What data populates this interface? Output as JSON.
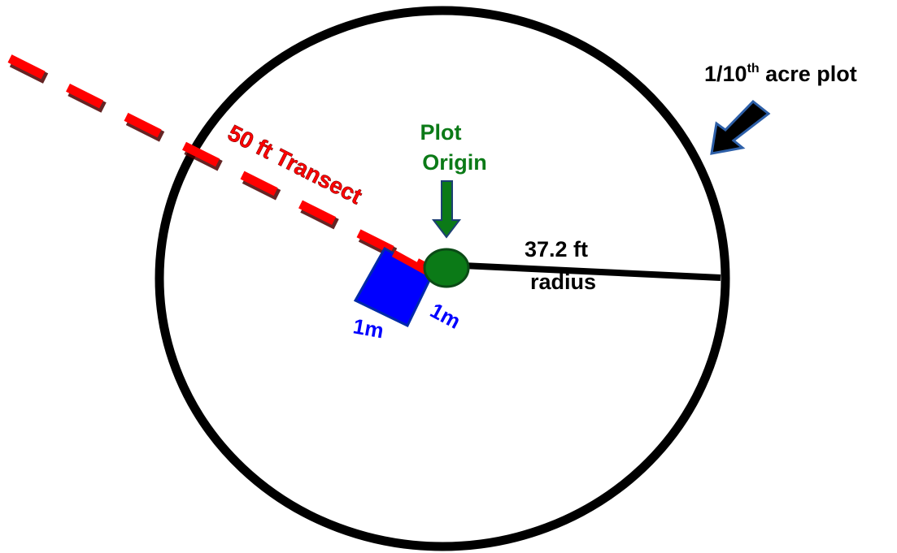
{
  "diagram": {
    "plot_label": {
      "prefix": "1/10",
      "superscript": "th",
      "suffix": " acre plot"
    },
    "transect_label": "50 ft Transect",
    "origin_label_line1": "Plot",
    "origin_label_line2": "Origin",
    "radius_label_line1": "37.2 ft",
    "radius_label_line2": "radius",
    "quadrat_side_a": "1m",
    "quadrat_side_b": "1m",
    "colors": {
      "plot_circle": "#000000",
      "transect": "#ff0000",
      "origin": "#0a7a18",
      "quadrat": "#0000ff",
      "arrow": "#000000",
      "arrow_outline": "#1c3f73"
    }
  }
}
